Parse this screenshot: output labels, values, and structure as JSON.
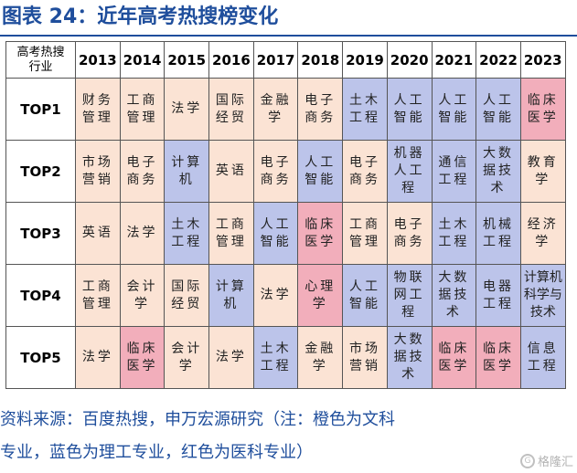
{
  "title": "图表 24：近年高考热搜榜变化",
  "header": {
    "corner_line1": "高考热搜",
    "corner_line2": "行业",
    "years": [
      "2013",
      "2014",
      "2015",
      "2016",
      "2017",
      "2018",
      "2019",
      "2020",
      "2021",
      "2022",
      "2023"
    ]
  },
  "category_colors": {
    "orange": "#fbe3d4",
    "blue": "#bcc4ea",
    "red": "#f2aebb"
  },
  "rows": [
    {
      "rank": "TOP1",
      "cells": [
        {
          "text": "财务管理",
          "color": "orange"
        },
        {
          "text": "工商管理",
          "color": "orange"
        },
        {
          "text": "法学",
          "color": "orange"
        },
        {
          "text": "国际经贸",
          "color": "orange"
        },
        {
          "text": "金融学",
          "color": "orange"
        },
        {
          "text": "电子商务",
          "color": "orange"
        },
        {
          "text": "土木工程",
          "color": "blue"
        },
        {
          "text": "人工智能",
          "color": "blue"
        },
        {
          "text": "人工智能",
          "color": "blue"
        },
        {
          "text": "人工智能",
          "color": "blue"
        },
        {
          "text": "临床医学",
          "color": "red"
        }
      ]
    },
    {
      "rank": "TOP2",
      "cells": [
        {
          "text": "市场营销",
          "color": "orange"
        },
        {
          "text": "电子商务",
          "color": "orange"
        },
        {
          "text": "计算机",
          "color": "blue"
        },
        {
          "text": "英语",
          "color": "orange"
        },
        {
          "text": "电子商务",
          "color": "orange"
        },
        {
          "text": "人工智能",
          "color": "blue"
        },
        {
          "text": "电子商务",
          "color": "orange"
        },
        {
          "text": "机器人工程",
          "color": "blue"
        },
        {
          "text": "通信工程",
          "color": "blue"
        },
        {
          "text": "大数据技术",
          "color": "blue"
        },
        {
          "text": "教育学",
          "color": "orange"
        }
      ]
    },
    {
      "rank": "TOP3",
      "cells": [
        {
          "text": "英语",
          "color": "orange"
        },
        {
          "text": "法学",
          "color": "orange"
        },
        {
          "text": "土木工程",
          "color": "blue"
        },
        {
          "text": "工商管理",
          "color": "orange"
        },
        {
          "text": "人工智能",
          "color": "blue"
        },
        {
          "text": "临床医学",
          "color": "red"
        },
        {
          "text": "工商管理",
          "color": "orange"
        },
        {
          "text": "电子商务",
          "color": "orange"
        },
        {
          "text": "土木工程",
          "color": "blue"
        },
        {
          "text": "机械工程",
          "color": "blue"
        },
        {
          "text": "经济学",
          "color": "orange"
        }
      ]
    },
    {
      "rank": "TOP4",
      "cells": [
        {
          "text": "工商管理",
          "color": "orange"
        },
        {
          "text": "会计学",
          "color": "orange"
        },
        {
          "text": "国际经贸",
          "color": "orange"
        },
        {
          "text": "计算机",
          "color": "blue"
        },
        {
          "text": "法学",
          "color": "orange"
        },
        {
          "text": "心理学",
          "color": "red"
        },
        {
          "text": "人工智能",
          "color": "blue"
        },
        {
          "text": "物联网工程",
          "color": "blue"
        },
        {
          "text": "大数据技术",
          "color": "blue"
        },
        {
          "text": "电器工程",
          "color": "blue"
        },
        {
          "text": "计算机科学与技术",
          "color": "blue"
        }
      ]
    },
    {
      "rank": "TOP5",
      "cells": [
        {
          "text": "法学",
          "color": "orange"
        },
        {
          "text": "临床医学",
          "color": "red"
        },
        {
          "text": "会计学",
          "color": "orange"
        },
        {
          "text": "法学",
          "color": "orange"
        },
        {
          "text": "土木工程",
          "color": "blue"
        },
        {
          "text": "金融学",
          "color": "orange"
        },
        {
          "text": "市场营销",
          "color": "orange"
        },
        {
          "text": "大数据技术",
          "color": "blue"
        },
        {
          "text": "临床医学",
          "color": "red"
        },
        {
          "text": "临床医学",
          "color": "red"
        },
        {
          "text": "信息工程",
          "color": "blue"
        }
      ]
    }
  ],
  "caption_line1": "资料来源：百度热搜，申万宏源研究（注：橙色为文科",
  "caption_line2": "专业，蓝色为理工专业，红色为医科专业）",
  "watermark": "格隆汇",
  "watermark_mark": "G"
}
